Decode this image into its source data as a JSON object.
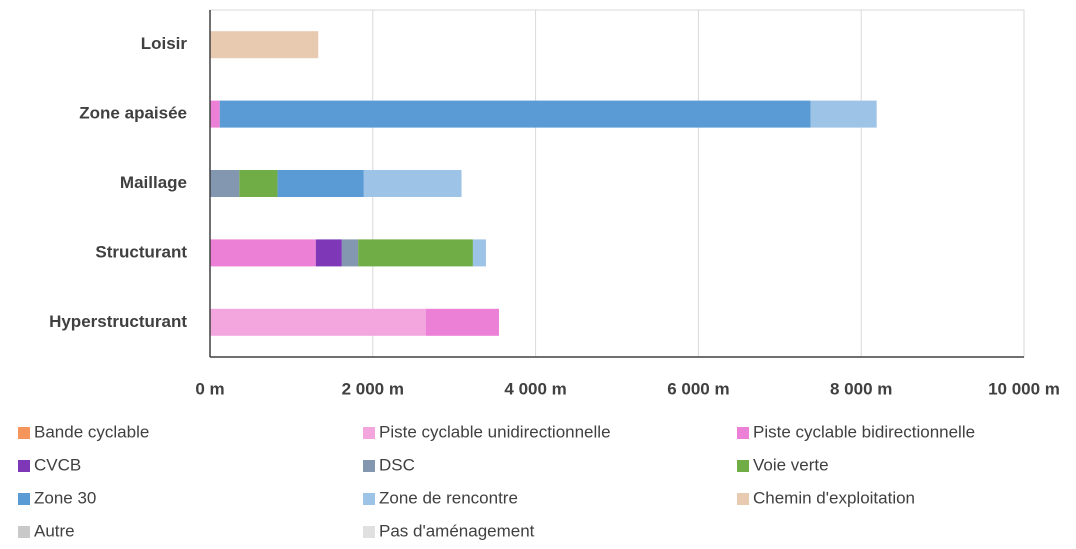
{
  "chart_data": {
    "type": "stacked_barh",
    "categories": [
      "Loisir",
      "Zone apaisée",
      "Maillage",
      "Structurant",
      "Hyperstructurant"
    ],
    "series": [
      {
        "name": "Bande cyclable",
        "color": "#f4965b",
        "values": [
          null,
          null,
          null,
          null,
          null
        ]
      },
      {
        "name": "Piste cyclable unidirectionnelle",
        "color": "#f3a6de",
        "values": [
          null,
          null,
          null,
          null,
          2650
        ]
      },
      {
        "name": "Piste cyclable bidirectionnelle",
        "color": "#ec7fd6",
        "values": [
          null,
          120,
          null,
          1300,
          900
        ]
      },
      {
        "name": "CVCB",
        "color": "#7e38b7",
        "values": [
          null,
          null,
          null,
          320,
          null
        ]
      },
      {
        "name": "DSC",
        "color": "#8497b0",
        "values": [
          null,
          null,
          360,
          200,
          null
        ]
      },
      {
        "name": "Voie verte",
        "color": "#70ad47",
        "values": [
          null,
          null,
          470,
          1410,
          null
        ]
      },
      {
        "name": "Zone 30",
        "color": "#5b9bd5",
        "values": [
          null,
          7260,
          1060,
          null,
          null
        ]
      },
      {
        "name": "Zone de rencontre",
        "color": "#9dc3e6",
        "values": [
          null,
          810,
          1200,
          160,
          null
        ]
      },
      {
        "name": "Chemin d'exploitation",
        "color": "#e8cab0",
        "values": [
          1330,
          null,
          null,
          null,
          null
        ]
      },
      {
        "name": "Autre",
        "color": "#c9c9c9",
        "values": [
          null,
          null,
          null,
          null,
          null
        ]
      },
      {
        "name": "Pas d'aménagement",
        "color": "#e0e0e0",
        "values": [
          null,
          null,
          null,
          null,
          null
        ]
      }
    ],
    "xlim": [
      0,
      10000
    ],
    "xticks": [
      {
        "value": 0,
        "label": "0 m"
      },
      {
        "value": 2000,
        "label": "2 000 m"
      },
      {
        "value": 4000,
        "label": "4 000 m"
      },
      {
        "value": 6000,
        "label": "6 000 m"
      },
      {
        "value": 8000,
        "label": "8 000 m"
      },
      {
        "value": 10000,
        "label": "10 000 m"
      }
    ],
    "grid": true,
    "legend": "bottom"
  }
}
